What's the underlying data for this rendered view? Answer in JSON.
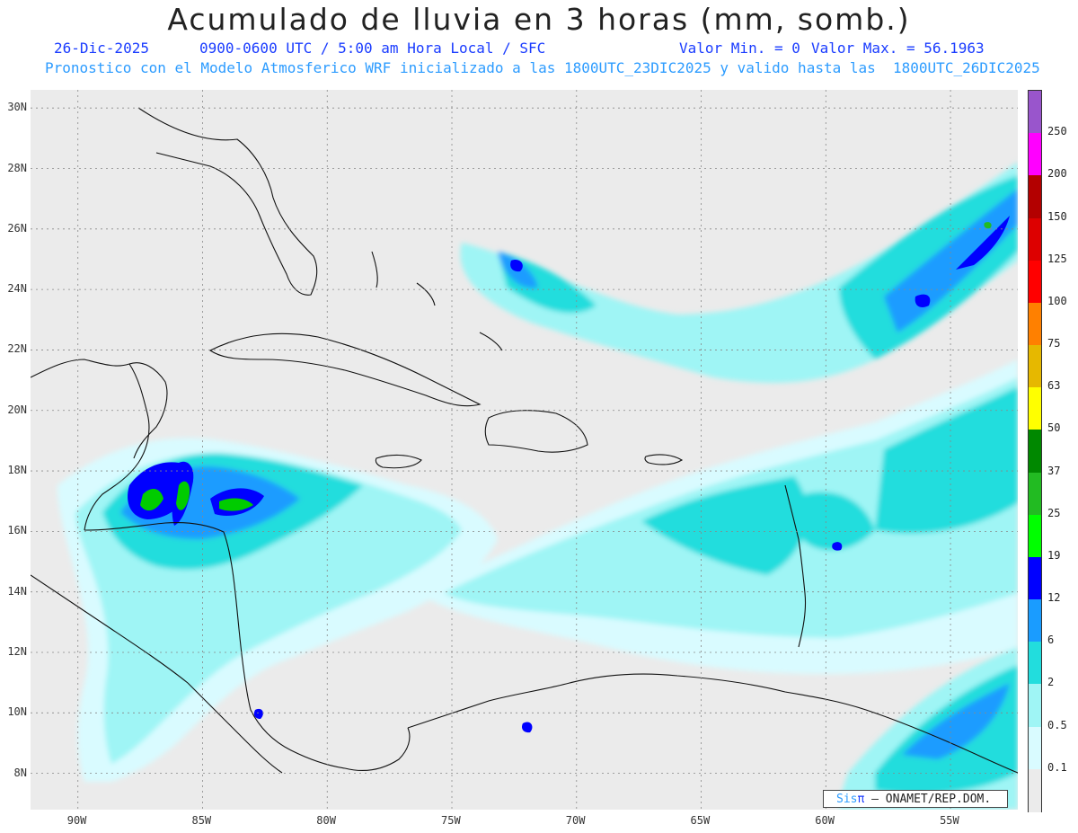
{
  "title": "Acumulado de lluvia en 3 horas (mm, somb.)",
  "subtitle_date": "26-Dic-2025",
  "subtitle_time": "0900-0600 UTC / 5:00 am Hora Local / SFC",
  "subtitle_min": "Valor Min. = 0",
  "subtitle_max": "Valor Max. = 56.1963",
  "subtitle_model": "Pronostico con el Modelo Atmosferico WRF inicializado a las 1800UTC_23DIC2025 y valido hasta las  1800UTC_26DIC2025",
  "lat_labels": [
    "30N",
    "28N",
    "26N",
    "24N",
    "22N",
    "20N",
    "18N",
    "16N",
    "14N",
    "12N",
    "10N",
    "8N"
  ],
  "lon_labels": [
    "90W",
    "85W",
    "80W",
    "75W",
    "70W",
    "65W",
    "60W",
    "55W"
  ],
  "colorbar": {
    "labels": [
      "250",
      "200",
      "150",
      "125",
      "100",
      "75",
      "63",
      "50",
      "37",
      "25",
      "19",
      "12",
      "6",
      "2",
      "0.5",
      "0.1"
    ],
    "colors": [
      "#9955cc",
      "#ff00ff",
      "#b30000",
      "#dd0000",
      "#ff0000",
      "#ff8000",
      "#e6b800",
      "#ffff00",
      "#008800",
      "#22bb22",
      "#00ff00",
      "#0000ff",
      "#1a9cff",
      "#22dddd",
      "#9ff5f5",
      "#d9fbff",
      "#ebebeb"
    ]
  },
  "credit": {
    "sis": "Sis",
    "pi": "π",
    "rest": "– ONAMET/REP.DOM."
  },
  "map_data": {
    "extent": {
      "lon_min": -91.9,
      "lon_max": -52.3,
      "lat_min": 6.8,
      "lat_max": 30.6
    },
    "light_rain_regions": [
      {
        "name": "atlantic-ne-band",
        "lon": [
          -75.0,
          -52.3
        ],
        "lat": [
          19.0,
          27.8
        ]
      },
      {
        "name": "caribbean-east-band",
        "lon": [
          -74.0,
          -52.3
        ],
        "lat": [
          11.0,
          20.5
        ]
      },
      {
        "name": "south-atlantic",
        "lon": [
          -60.0,
          -52.3
        ],
        "lat": [
          7.0,
          11.5
        ]
      },
      {
        "name": "western-caribbean",
        "lon": [
          -90.0,
          -76.0
        ],
        "lat": [
          8.0,
          18.5
        ]
      }
    ],
    "heavy_rain_regions": [
      {
        "name": "honduras-gulf-max",
        "lon": [
          -88.6,
          -83.5
        ],
        "lat": [
          15.7,
          18.3
        ]
      },
      {
        "name": "ne-atlantic-core",
        "lon": [
          -59.0,
          -52.5
        ],
        "lat": [
          23.5,
          27.2
        ]
      }
    ]
  }
}
